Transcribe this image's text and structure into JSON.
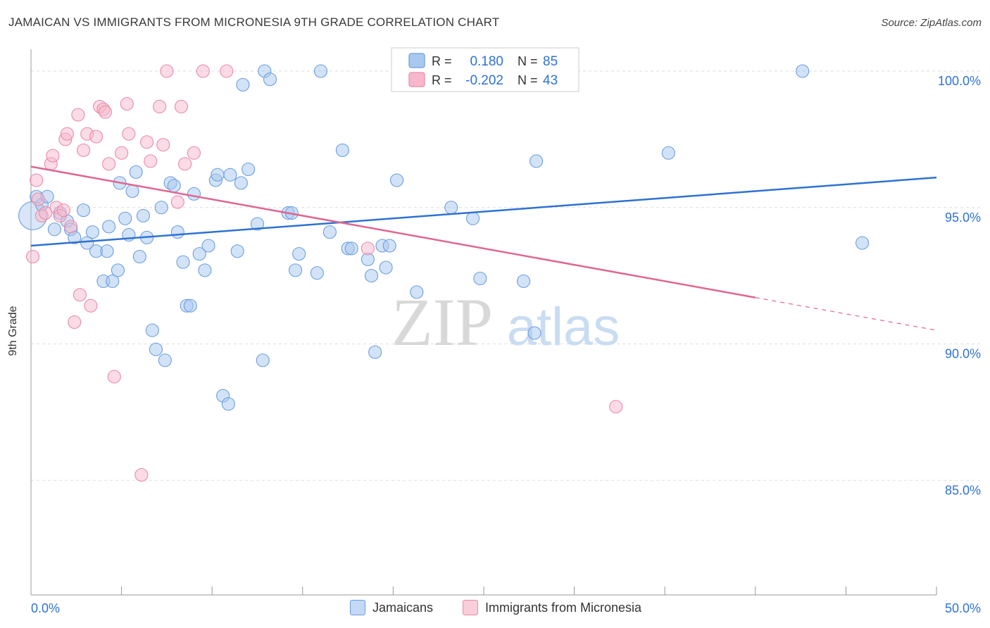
{
  "title": "JAMAICAN VS IMMIGRANTS FROM MICRONESIA 9TH GRADE CORRELATION CHART",
  "source": "Source: ZipAtlas.com",
  "watermark": {
    "zip": "ZIP",
    "atlas": "atlas"
  },
  "legend_stats": [
    {
      "r_label": "R =",
      "r_value": "0.180",
      "n_label": "N =",
      "n_value": "85"
    },
    {
      "r_label": "R =",
      "r_value": "-0.202",
      "n_label": "N =",
      "n_value": "43"
    }
  ],
  "colors": {
    "blue_fill": "#a8c8f0",
    "blue_stroke": "#6a9de0",
    "blue_line": "#2e72d2",
    "pink_fill": "#f7b8cc",
    "pink_stroke": "#e88aa8",
    "pink_line": "#e0668f",
    "value_text": "#2e72d2",
    "grid": "#dddddd"
  },
  "chart_data": {
    "type": "scatter",
    "title": "JAMAICAN VS IMMIGRANTS FROM MICRONESIA 9TH GRADE CORRELATION CHART",
    "xlabel": "",
    "ylabel": "9th Grade",
    "xlim": [
      0,
      50
    ],
    "ylim": [
      80.8,
      100.8
    ],
    "x_tick_labels": [
      "0.0%",
      "50.0%"
    ],
    "y_ticks": [
      85,
      90,
      95,
      100
    ],
    "y_tick_labels": [
      "85.0%",
      "90.0%",
      "95.0%",
      "100.0%"
    ],
    "grid": true,
    "legend_position": "top-center",
    "series": [
      {
        "name": "Jamaicans",
        "color": "#a8c8f0",
        "r": 0.18,
        "n": 85,
        "trend": {
          "x": [
            0,
            50
          ],
          "y": [
            93.6,
            96.1
          ]
        },
        "points": [
          [
            0.1,
            94.7
          ],
          [
            0.3,
            95.4
          ],
          [
            0.6,
            95.1
          ],
          [
            0.9,
            95.4
          ],
          [
            1.3,
            94.2
          ],
          [
            1.6,
            94.8
          ],
          [
            2.0,
            94.5
          ],
          [
            2.2,
            94.2
          ],
          [
            2.4,
            93.9
          ],
          [
            2.9,
            94.9
          ],
          [
            3.1,
            93.7
          ],
          [
            3.4,
            94.1
          ],
          [
            3.6,
            93.4
          ],
          [
            4.0,
            92.3
          ],
          [
            4.2,
            93.4
          ],
          [
            4.3,
            94.3
          ],
          [
            4.5,
            92.3
          ],
          [
            4.8,
            92.7
          ],
          [
            4.9,
            95.9
          ],
          [
            5.2,
            94.6
          ],
          [
            5.4,
            94.0
          ],
          [
            5.6,
            95.6
          ],
          [
            5.8,
            96.3
          ],
          [
            6.0,
            93.2
          ],
          [
            6.2,
            94.7
          ],
          [
            6.4,
            93.9
          ],
          [
            6.7,
            90.5
          ],
          [
            6.9,
            89.8
          ],
          [
            7.2,
            95.0
          ],
          [
            7.4,
            89.4
          ],
          [
            7.7,
            95.9
          ],
          [
            7.9,
            95.8
          ],
          [
            8.1,
            94.1
          ],
          [
            8.4,
            93.0
          ],
          [
            8.6,
            91.4
          ],
          [
            8.8,
            91.4
          ],
          [
            9.0,
            95.5
          ],
          [
            9.3,
            93.3
          ],
          [
            9.6,
            92.7
          ],
          [
            9.8,
            93.6
          ],
          [
            10.2,
            96.0
          ],
          [
            10.3,
            96.2
          ],
          [
            10.6,
            88.1
          ],
          [
            10.9,
            87.8
          ],
          [
            11.0,
            96.2
          ],
          [
            11.4,
            93.4
          ],
          [
            11.6,
            95.9
          ],
          [
            11.7,
            99.5
          ],
          [
            12.0,
            96.4
          ],
          [
            12.5,
            94.4
          ],
          [
            12.8,
            89.4
          ],
          [
            12.9,
            100.0
          ],
          [
            13.2,
            99.7
          ],
          [
            14.2,
            94.8
          ],
          [
            14.4,
            94.8
          ],
          [
            14.6,
            92.7
          ],
          [
            14.8,
            93.3
          ],
          [
            15.8,
            92.6
          ],
          [
            16.0,
            100.0
          ],
          [
            16.5,
            94.1
          ],
          [
            17.2,
            97.1
          ],
          [
            17.5,
            93.5
          ],
          [
            17.7,
            93.5
          ],
          [
            18.6,
            93.1
          ],
          [
            18.8,
            92.5
          ],
          [
            19.0,
            89.7
          ],
          [
            19.4,
            93.6
          ],
          [
            19.6,
            92.8
          ],
          [
            19.8,
            93.6
          ],
          [
            20.2,
            96.0
          ],
          [
            21.3,
            91.9
          ],
          [
            23.2,
            95.0
          ],
          [
            24.4,
            94.6
          ],
          [
            24.8,
            92.4
          ],
          [
            26.9,
            100.0
          ],
          [
            27.2,
            92.3
          ],
          [
            27.8,
            90.4
          ],
          [
            27.9,
            96.7
          ],
          [
            35.2,
            97.0
          ],
          [
            42.6,
            100.0
          ],
          [
            45.9,
            93.7
          ]
        ]
      },
      {
        "name": "Immigrants from Micronesia",
        "color": "#f7b8cc",
        "r": -0.202,
        "n": 43,
        "trend": {
          "x": [
            0,
            40
          ],
          "y": [
            96.5,
            91.7
          ]
        },
        "trend_dashed": {
          "x": [
            40,
            50
          ],
          "y": [
            91.7,
            90.5
          ]
        },
        "points": [
          [
            0.1,
            93.2
          ],
          [
            0.3,
            96.0
          ],
          [
            0.4,
            95.3
          ],
          [
            0.6,
            94.7
          ],
          [
            0.8,
            94.8
          ],
          [
            1.1,
            96.6
          ],
          [
            1.2,
            96.9
          ],
          [
            1.4,
            95.0
          ],
          [
            1.6,
            94.7
          ],
          [
            1.8,
            94.9
          ],
          [
            1.9,
            97.5
          ],
          [
            2.0,
            97.7
          ],
          [
            2.2,
            94.3
          ],
          [
            2.4,
            90.8
          ],
          [
            2.6,
            98.4
          ],
          [
            2.7,
            91.8
          ],
          [
            2.9,
            97.1
          ],
          [
            3.1,
            97.7
          ],
          [
            3.3,
            91.4
          ],
          [
            3.6,
            97.6
          ],
          [
            3.8,
            98.7
          ],
          [
            4.0,
            98.6
          ],
          [
            4.1,
            98.5
          ],
          [
            4.3,
            96.6
          ],
          [
            4.6,
            88.8
          ],
          [
            5.0,
            97.0
          ],
          [
            5.3,
            98.8
          ],
          [
            5.4,
            97.7
          ],
          [
            6.1,
            85.2
          ],
          [
            6.4,
            97.4
          ],
          [
            6.6,
            96.7
          ],
          [
            7.1,
            98.7
          ],
          [
            7.3,
            97.3
          ],
          [
            7.5,
            100.0
          ],
          [
            8.1,
            95.2
          ],
          [
            8.3,
            98.7
          ],
          [
            8.5,
            96.6
          ],
          [
            9.0,
            97.0
          ],
          [
            9.5,
            100.0
          ],
          [
            10.8,
            100.0
          ],
          [
            18.6,
            93.5
          ],
          [
            32.3,
            87.7
          ]
        ]
      }
    ]
  },
  "legend_bottom": [
    "Jamaicans",
    "Immigrants from Micronesia"
  ]
}
